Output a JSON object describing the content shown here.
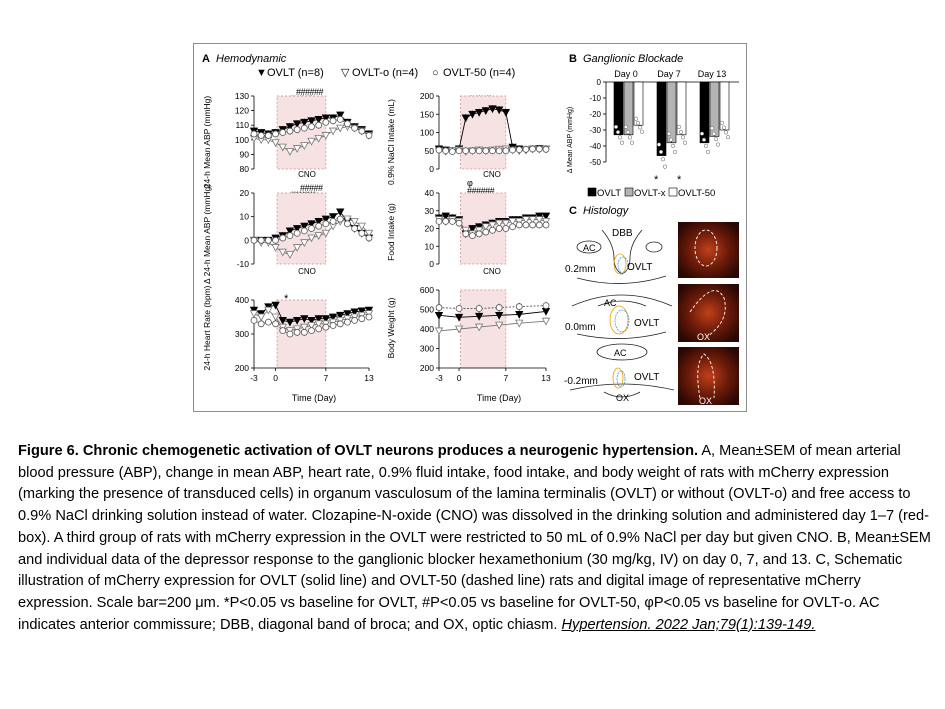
{
  "panel_a": {
    "letter": "A",
    "title": "Hemodynamic",
    "legend": [
      {
        "symbol": "▼",
        "label": "OVLT (n=8)"
      },
      {
        "symbol": "▽",
        "label": "OVLT-o (n=4)"
      },
      {
        "symbol": "○",
        "label": "OVLT-50 (n=4)"
      }
    ],
    "cno_label": "CNO",
    "xlabel": "Time (Day)",
    "ylabels": {
      "map": "24-h Mean ABP (mmHg)",
      "dmap": "Δ 24-h Mean ABP (mmHg)",
      "hr": "24-h Heart Rate (bpm)",
      "nacl": "0.9% NaCl Intake (mL)",
      "food": "Food Intake (g)",
      "bw": "Body Weight (g)"
    },
    "sig_marks": {
      "map_hash": "######",
      "map_star": "********",
      "dmap_hash": "#####",
      "dmap_star": "*********",
      "hr_star": "*",
      "nacl_star": "********",
      "food_phi": "φ",
      "food_hash": "######",
      "food_star": "****"
    }
  },
  "panel_b": {
    "letter": "B",
    "title": "Ganglionic Blockade",
    "day_labels": [
      "Day 0",
      "Day 7",
      "Day 13"
    ],
    "ylabel": "Δ Mean ABP (mmHg)",
    "sig": [
      "*",
      "*"
    ],
    "legend": [
      {
        "swatch": "#000000",
        "label": "OVLT"
      },
      {
        "swatch": "#b4b4b4",
        "label": "OVLT-x"
      },
      {
        "swatch": "#ffffff",
        "label": "OVLT-50"
      }
    ]
  },
  "panel_c": {
    "letter": "C",
    "title": "Histology",
    "labels": {
      "dbb": "DBB",
      "ac": "AC",
      "ovlt": "OVLT",
      "ox": "OX",
      "level1": "0.2mm",
      "level2": "0.0mm",
      "level3": "-0.2mm"
    }
  },
  "caption": {
    "bold_part": "Figure 6. Chronic chemogenetic activation of OVLT neurons produces a neurogenic hypertension.",
    "body": " A, Mean±SEM of mean arterial blood pressure (ABP), change in mean ABP, heart rate, 0.9% fluid intake, food intake, and body weight of rats with mCherry expression (marking the presence of transduced cells) in organum vasculosum of the lamina terminalis (OVLT) or without (OVLT-o) and free access to 0.9% NaCl drinking solution instead of water. Clozapine-N-oxide (CNO) was dissolved in the drinking solution and administered day 1–7 (red-box). A third group of rats with mCherry expression in the OVLT were restricted to 50 mL of 0.9% NaCl per day but given CNO. B, Mean±SEM and individual data of the depressor response to the ganglionic blocker hexamethonium (30 mg/kg, IV) on day 0, 7, and 13. C, Schematic illustration of mCherry expression for OVLT (solid line) and OVLT-50 (dashed line) rats and digital image of representative mCherry expression. Scale bar=200 μm. *P<0.05 vs baseline for OVLT, #P<0.05 vs baseline for OVLT-50, φP<0.05 vs baseline for OVLT-o. AC indicates anterior commissure; DBB, diagonal band of broca; and OX, optic chiasm.",
    "citation": "Hypertension. 2022 Jan;79(1):139-149."
  },
  "chart_data": [
    {
      "type": "line",
      "xlabel": "Time (Day)",
      "ylabel": "24-h Mean ABP (mmHg)",
      "x": [
        -3,
        -2,
        -1,
        0,
        1,
        2,
        3,
        4,
        5,
        6,
        7,
        8,
        9,
        10,
        11,
        12,
        13
      ],
      "ylim": [
        80,
        130
      ],
      "yticks": [
        80,
        90,
        100,
        110,
        120,
        130
      ],
      "series": [
        {
          "name": "OVLT (n=8)",
          "values": [
            106,
            105,
            104,
            105,
            107,
            109,
            111,
            112,
            113,
            114,
            115,
            115,
            117,
            112,
            109,
            107,
            104
          ]
        },
        {
          "name": "OVLT-o (n=4)",
          "values": [
            101,
            100,
            100,
            98,
            95,
            92,
            94,
            96,
            99,
            101,
            103,
            106,
            108,
            109,
            108,
            106,
            103
          ]
        },
        {
          "name": "OVLT-50 (n=4)",
          "values": [
            104,
            103,
            103,
            104,
            105,
            106,
            107,
            108,
            109,
            110,
            112,
            113,
            114,
            111,
            108,
            106,
            103
          ]
        }
      ]
    },
    {
      "type": "line",
      "xlabel": "Time (Day)",
      "ylabel": "Δ 24-h Mean ABP (mmHg)",
      "x": [
        -3,
        -2,
        -1,
        0,
        1,
        2,
        3,
        4,
        5,
        6,
        7,
        8,
        9,
        10,
        11,
        12,
        13
      ],
      "ylim": [
        -10,
        20
      ],
      "yticks": [
        -10,
        0,
        10,
        20
      ],
      "series": [
        {
          "name": "OVLT (n=8)",
          "values": [
            0,
            0,
            0,
            1,
            2,
            4,
            5,
            6,
            7,
            8,
            9,
            10,
            12,
            8,
            5,
            3,
            1
          ]
        },
        {
          "name": "OVLT-o (n=4)",
          "values": [
            0,
            -1,
            -1,
            -3,
            -5,
            -6,
            -3,
            -1,
            1,
            2,
            3,
            6,
            8,
            9,
            8,
            6,
            3
          ]
        },
        {
          "name": "OVLT-50 (n=4)",
          "values": [
            0,
            0,
            0,
            0,
            1,
            2,
            3,
            4,
            5,
            6,
            7,
            8,
            9,
            7,
            5,
            3,
            1
          ]
        }
      ]
    },
    {
      "type": "line",
      "xlabel": "Time (Day)",
      "ylabel": "24-h Heart Rate (bpm)",
      "x": [
        -3,
        -2,
        -1,
        0,
        1,
        2,
        3,
        4,
        5,
        6,
        7,
        8,
        9,
        10,
        11,
        12,
        13
      ],
      "ylim": [
        200,
        400
      ],
      "yticks": [
        200,
        300,
        400
      ],
      "series": [
        {
          "name": "OVLT (n=8)",
          "values": [
            370,
            360,
            380,
            385,
            340,
            335,
            340,
            345,
            340,
            345,
            345,
            350,
            355,
            360,
            365,
            368,
            370
          ]
        },
        {
          "name": "OVLT-o (n=4)",
          "values": [
            360,
            350,
            370,
            350,
            320,
            310,
            315,
            320,
            325,
            330,
            330,
            335,
            340,
            345,
            350,
            355,
            360
          ]
        },
        {
          "name": "OVLT-50 (n=4)",
          "values": [
            340,
            330,
            335,
            330,
            310,
            300,
            305,
            305,
            310,
            315,
            320,
            325,
            330,
            335,
            340,
            345,
            350
          ]
        }
      ]
    },
    {
      "type": "line",
      "xlabel": "Time (Day)",
      "ylabel": "0.9% NaCl Intake (mL)",
      "x": [
        -3,
        -2,
        -1,
        0,
        1,
        2,
        3,
        4,
        5,
        6,
        7,
        8,
        9,
        10,
        11,
        12,
        13
      ],
      "ylim": [
        0,
        200
      ],
      "yticks": [
        0,
        50,
        100,
        150,
        200
      ],
      "series": [
        {
          "name": "OVLT (n=8)",
          "values": [
            55,
            52,
            50,
            55,
            140,
            150,
            155,
            160,
            165,
            162,
            155,
            60,
            55,
            52,
            55,
            56,
            55
          ]
        },
        {
          "name": "OVLT-o (n=4)",
          "values": [
            50,
            48,
            50,
            52,
            48,
            50,
            52,
            50,
            52,
            54,
            55,
            52,
            50,
            52,
            55,
            54,
            55
          ]
        },
        {
          "name": "OVLT-50 (n=4)",
          "values": [
            52,
            50,
            48,
            50,
            50,
            50,
            50,
            50,
            50,
            50,
            50,
            52,
            53,
            54,
            55,
            55,
            54
          ]
        }
      ]
    },
    {
      "type": "line",
      "xlabel": "Time (Day)",
      "ylabel": "Food Intake (g)",
      "x": [
        -3,
        -2,
        -1,
        0,
        1,
        2,
        3,
        4,
        5,
        6,
        7,
        8,
        9,
        10,
        11,
        12,
        13
      ],
      "ylim": [
        0,
        40
      ],
      "yticks": [
        0,
        10,
        20,
        30,
        40
      ],
      "series": [
        {
          "name": "OVLT (n=8)",
          "values": [
            26,
            27,
            26,
            25,
            17,
            20,
            21,
            22,
            23,
            24,
            24,
            25,
            25,
            26,
            26,
            27,
            27
          ]
        },
        {
          "name": "OVLT-o (n=4)",
          "values": [
            25,
            24,
            25,
            24,
            19,
            17,
            19,
            21,
            22,
            23,
            23,
            24,
            24,
            25,
            25,
            25,
            24
          ]
        },
        {
          "name": "OVLT-50 (n=4)",
          "values": [
            24,
            24,
            24,
            23,
            17,
            16,
            17,
            18,
            19,
            20,
            20,
            21,
            22,
            22,
            22,
            22,
            22
          ]
        }
      ]
    },
    {
      "type": "line",
      "xlabel": "Time (Day)",
      "ylabel": "Body Weight (g)",
      "x": [
        -3,
        0,
        3,
        6,
        9,
        13
      ],
      "ylim": [
        200,
        600
      ],
      "yticks": [
        200,
        300,
        400,
        500,
        600
      ],
      "series": [
        {
          "name": "OVLT (n=8)",
          "values": [
            470,
            460,
            465,
            470,
            475,
            490
          ]
        },
        {
          "name": "OVLT-o (n=4)",
          "values": [
            390,
            400,
            410,
            420,
            430,
            440
          ]
        },
        {
          "name": "OVLT-50 (n=4)",
          "values": [
            510,
            505,
            505,
            510,
            515,
            520
          ]
        }
      ]
    },
    {
      "type": "bar",
      "title": "Ganglionic Blockade",
      "ylabel": "Δ Mean ABP (mmHg)",
      "categories": [
        "Day 0",
        "Day 7",
        "Day 13"
      ],
      "ylim": [
        -50,
        0
      ],
      "yticks": [
        0,
        -10,
        -20,
        -30,
        -40,
        -50
      ],
      "series": [
        {
          "name": "OVLT",
          "values": [
            -33,
            -46,
            -38
          ]
        },
        {
          "name": "OVLT-x",
          "values": [
            -33,
            -38,
            -34
          ]
        },
        {
          "name": "OVLT-50",
          "values": [
            -27,
            -33,
            -30
          ]
        }
      ]
    }
  ]
}
